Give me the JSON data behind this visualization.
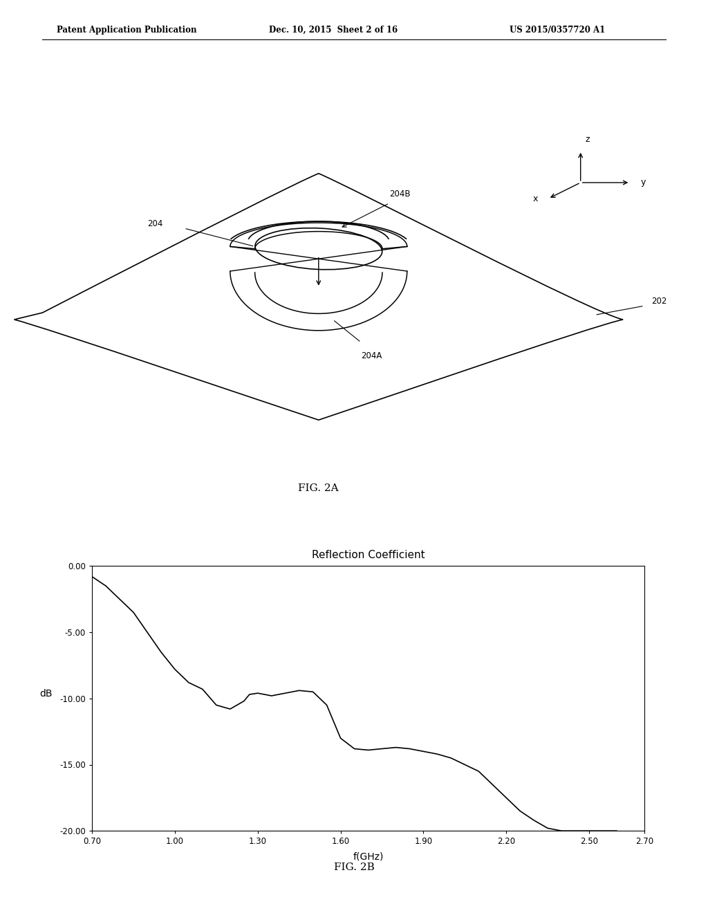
{
  "header_left": "Patent Application Publication",
  "header_mid": "Dec. 10, 2015  Sheet 2 of 16",
  "header_right": "US 2015/0357720 A1",
  "fig2a_label": "FIG. 2A",
  "fig2b_label": "FIG. 2B",
  "label_202": "202",
  "label_204": "204",
  "label_204A": "204A",
  "label_204B": "204B",
  "axis_x_label": "x",
  "axis_y_label": "y",
  "axis_z_label": "z",
  "chart_title": "Reflection Coefficient",
  "xlabel": "f(GHz)",
  "ylabel": "dB",
  "xlim": [
    0.7,
    2.7
  ],
  "ylim": [
    -20.0,
    0.0
  ],
  "xticks": [
    0.7,
    1.0,
    1.3,
    1.6,
    1.9,
    2.2,
    2.5,
    2.7
  ],
  "yticks": [
    0.0,
    -5.0,
    -10.0,
    -15.0,
    -20.0
  ],
  "xtick_labels": [
    "0.70",
    "1.00",
    "1.30",
    "1.60",
    "1.90",
    "2.20",
    "2.50",
    "2.70"
  ],
  "ytick_labels": [
    "0.00",
    "-5.00",
    "-10.00",
    "-15.00",
    "-20.00"
  ],
  "curve_x": [
    0.7,
    0.75,
    0.8,
    0.85,
    0.9,
    0.95,
    1.0,
    1.05,
    1.1,
    1.15,
    1.2,
    1.25,
    1.27,
    1.3,
    1.35,
    1.4,
    1.45,
    1.5,
    1.55,
    1.6,
    1.65,
    1.7,
    1.75,
    1.8,
    1.85,
    1.9,
    1.95,
    2.0,
    2.05,
    2.1,
    2.15,
    2.2,
    2.25,
    2.3,
    2.35,
    2.4,
    2.45,
    2.5,
    2.55,
    2.6
  ],
  "curve_y": [
    -0.8,
    -1.5,
    -2.5,
    -3.5,
    -5.0,
    -6.5,
    -7.8,
    -8.8,
    -9.3,
    -10.5,
    -10.8,
    -10.2,
    -9.7,
    -9.6,
    -9.8,
    -9.6,
    -9.4,
    -9.5,
    -10.5,
    -13.0,
    -13.8,
    -13.9,
    -13.8,
    -13.7,
    -13.8,
    -14.0,
    -14.2,
    -14.5,
    -15.0,
    -15.5,
    -16.5,
    -17.5,
    -18.5,
    -19.2,
    -19.8,
    -20.0,
    -20.0,
    -20.0,
    -20.0,
    -20.0
  ],
  "background_color": "#ffffff",
  "line_color": "#000000",
  "text_color": "#000000"
}
